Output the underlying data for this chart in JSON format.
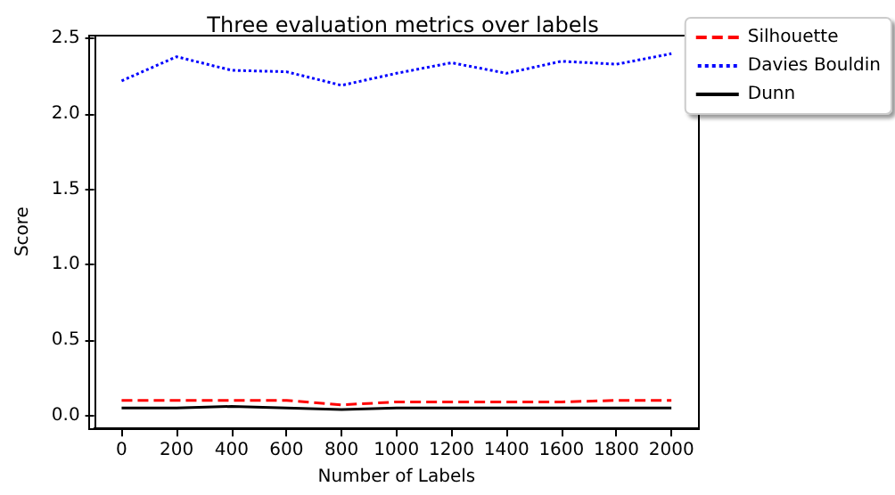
{
  "chart_data": {
    "type": "line",
    "title": "Three evaluation metrics over labels",
    "xlabel": "Number of Labels",
    "ylabel": "Score",
    "x": [
      0,
      200,
      400,
      600,
      800,
      1000,
      1200,
      1400,
      1600,
      1800,
      2000
    ],
    "series": [
      {
        "name": "Silhouette",
        "color": "#ff0000",
        "line_style": "dashed",
        "values": [
          0.1,
          0.1,
          0.1,
          0.1,
          0.07,
          0.09,
          0.09,
          0.09,
          0.09,
          0.1,
          0.1
        ]
      },
      {
        "name": "Davies Bouldin",
        "color": "#0000ff",
        "line_style": "dotted",
        "values": [
          2.22,
          2.38,
          2.29,
          2.28,
          2.19,
          2.27,
          2.34,
          2.27,
          2.35,
          2.33,
          2.4
        ]
      },
      {
        "name": "Dunn",
        "color": "#000000",
        "line_style": "solid",
        "values": [
          0.05,
          0.05,
          0.06,
          0.05,
          0.04,
          0.05,
          0.05,
          0.05,
          0.05,
          0.05,
          0.05
        ]
      }
    ],
    "xlim": [
      -100,
      2100
    ],
    "xticks": [
      0,
      200,
      400,
      600,
      800,
      1000,
      1200,
      1400,
      1600,
      1800,
      2000
    ],
    "ylim": [
      -0.08,
      2.52
    ],
    "yticks": [
      {
        "value": 0,
        "label": "0.0"
      },
      0.5,
      {
        "value": 1,
        "label": "1.0"
      },
      1.5,
      {
        "value": 2,
        "label": "2.0"
      },
      2.5
    ],
    "grid": false,
    "legend": "top right",
    "marker": "none"
  }
}
